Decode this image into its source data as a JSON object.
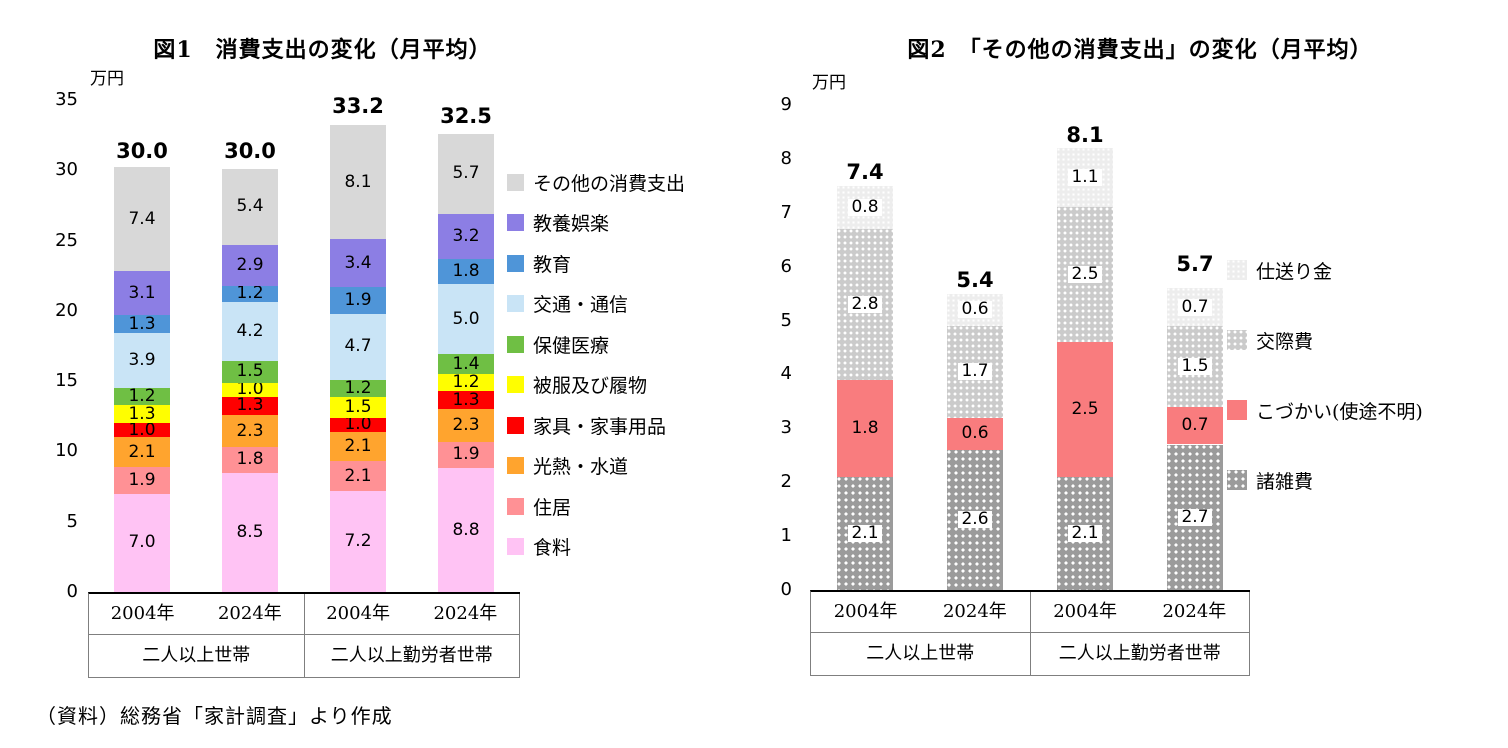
{
  "source_note": "（資料）総務省「家計調査」より作成",
  "chart_data": [
    {
      "type": "bar",
      "stacked": true,
      "title": "図1　消費支出の変化（月平均）",
      "unit_label": "万円",
      "ylim": [
        0,
        35
      ],
      "ytick_step": 5,
      "grid": false,
      "legend_position": "right",
      "legend_order": "reversed",
      "group_labels": [
        "二人以上世帯",
        "二人以上勤労者世帯"
      ],
      "categories": [
        "2004年",
        "2024年",
        "2004年",
        "2024年"
      ],
      "category_groups": [
        0,
        0,
        1,
        1
      ],
      "totals": [
        "30.0",
        "30.0",
        "33.2",
        "32.5"
      ],
      "series": [
        {
          "name": "食料",
          "color": "#FFC3F4",
          "pattern": "solid",
          "values": [
            7.0,
            8.5,
            7.2,
            8.8
          ]
        },
        {
          "name": "住居",
          "color": "#FF9195",
          "pattern": "solid",
          "values": [
            1.9,
            1.8,
            2.1,
            1.9
          ]
        },
        {
          "name": "光熱・水道",
          "color": "#FFA42E",
          "pattern": "solid",
          "values": [
            2.1,
            2.3,
            2.1,
            2.3
          ]
        },
        {
          "name": "家具・家事用品",
          "color": "#FE0000",
          "pattern": "solid",
          "values": [
            1.0,
            1.3,
            1.0,
            1.3
          ]
        },
        {
          "name": "被服及び履物",
          "color": "#FFFE00",
          "pattern": "solid",
          "values": [
            1.3,
            1.0,
            1.5,
            1.2
          ]
        },
        {
          "name": "保健医療",
          "color": "#6FBF44",
          "pattern": "solid",
          "values": [
            1.2,
            1.5,
            1.2,
            1.4
          ]
        },
        {
          "name": "交通・通信",
          "color": "#C9E4F6",
          "pattern": "solid",
          "values": [
            3.9,
            4.2,
            4.7,
            5.0
          ]
        },
        {
          "name": "教育",
          "color": "#4F95D8",
          "pattern": "solid",
          "values": [
            1.3,
            1.2,
            1.9,
            1.8
          ]
        },
        {
          "name": "教養娯楽",
          "color": "#8C7EE4",
          "pattern": "solid",
          "values": [
            3.1,
            2.9,
            3.4,
            3.2
          ]
        },
        {
          "name": "その他の消費支出",
          "color": "#D8D8D8",
          "pattern": "solid",
          "values": [
            7.4,
            5.4,
            8.1,
            5.7
          ]
        }
      ]
    },
    {
      "type": "bar",
      "stacked": true,
      "title": "図2　「その他の消費支出」の変化（月平均）",
      "unit_label": "万円",
      "ylim": [
        0,
        9
      ],
      "ytick_step": 1,
      "grid": false,
      "legend_position": "right",
      "legend_order": "reversed",
      "group_labels": [
        "二人以上世帯",
        "二人以上勤労者世帯"
      ],
      "categories": [
        "2004年",
        "2024年",
        "2004年",
        "2024年"
      ],
      "category_groups": [
        0,
        0,
        1,
        1
      ],
      "totals": [
        "7.4",
        "5.4",
        "8.1",
        "5.7"
      ],
      "series": [
        {
          "name": "諸雑費",
          "color": "#9B9B9B",
          "pattern": "dots-dark",
          "values": [
            2.1,
            2.6,
            2.1,
            2.7
          ]
        },
        {
          "name": "こづかい(使途不明)",
          "color": "#F97C7E",
          "pattern": "solid",
          "values": [
            1.8,
            0.6,
            2.5,
            0.7
          ]
        },
        {
          "name": "交際費",
          "color": "#CBCBCB",
          "pattern": "dots-mid",
          "values": [
            2.8,
            1.7,
            2.5,
            1.5
          ]
        },
        {
          "name": "仕送り金",
          "color": "#EDEDED",
          "pattern": "dots-light",
          "values": [
            0.8,
            0.6,
            1.1,
            0.7
          ]
        }
      ]
    }
  ]
}
